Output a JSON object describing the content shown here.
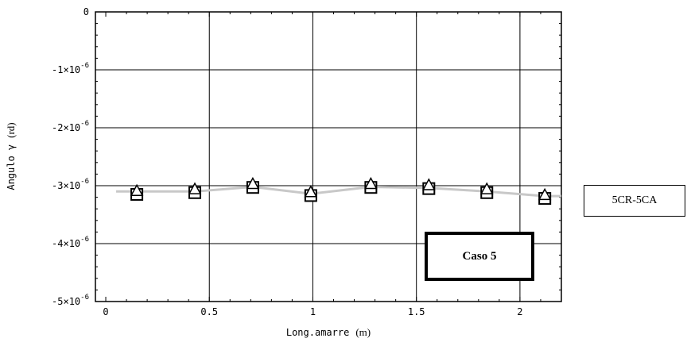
{
  "chart_data": {
    "type": "line",
    "xlabel": "Long.amarre",
    "xlabel_unit": "(m)",
    "ylabel": "Angulo γ",
    "ylabel_unit": "(rd)",
    "xlim": [
      -0.05,
      2.2
    ],
    "ylim": [
      -5e-06,
      0
    ],
    "grid": true,
    "x_ticks": [
      {
        "value": 0,
        "label": "0"
      },
      {
        "value": 0.5,
        "label": "0.5"
      },
      {
        "value": 1,
        "label": "1"
      },
      {
        "value": 1.5,
        "label": "1.5"
      },
      {
        "value": 2,
        "label": "2"
      }
    ],
    "y_ticks": [
      {
        "value": 0,
        "mant": "0",
        "exp": ""
      },
      {
        "value": -1e-06,
        "mant": "-1×10",
        "exp": "-6"
      },
      {
        "value": -2e-06,
        "mant": "-2×10",
        "exp": "-6"
      },
      {
        "value": -3e-06,
        "mant": "-3×10",
        "exp": "-6"
      },
      {
        "value": -4e-06,
        "mant": "-4×10",
        "exp": "-6"
      },
      {
        "value": -5e-06,
        "mant": "-5×10",
        "exp": "-6"
      }
    ],
    "series": [
      {
        "name": "5CR-5CA",
        "x": [
          0.15,
          0.43,
          0.71,
          0.99,
          1.28,
          1.56,
          1.84,
          2.12
        ],
        "line_y": [
          -3.1e-06,
          -3.1e-06,
          -3.02e-06,
          -3.14e-06,
          -3.02e-06,
          -3.04e-06,
          -3.1e-06,
          -3.18e-06
        ],
        "squares_y": [
          -3.15e-06,
          -3.12e-06,
          -3.03e-06,
          -3.17e-06,
          -3.03e-06,
          -3.05e-06,
          -3.12e-06,
          -3.22e-06
        ],
        "triangles_y": [
          -3.1e-06,
          -3.07e-06,
          -2.98e-06,
          -3.12e-06,
          -2.98e-06,
          -3e-06,
          -3.07e-06,
          -3.17e-06
        ],
        "line_color": "#c8c8c8"
      }
    ]
  },
  "legend": {
    "label": "5CR-5CA"
  },
  "annotation": {
    "label": "Caso 5"
  }
}
